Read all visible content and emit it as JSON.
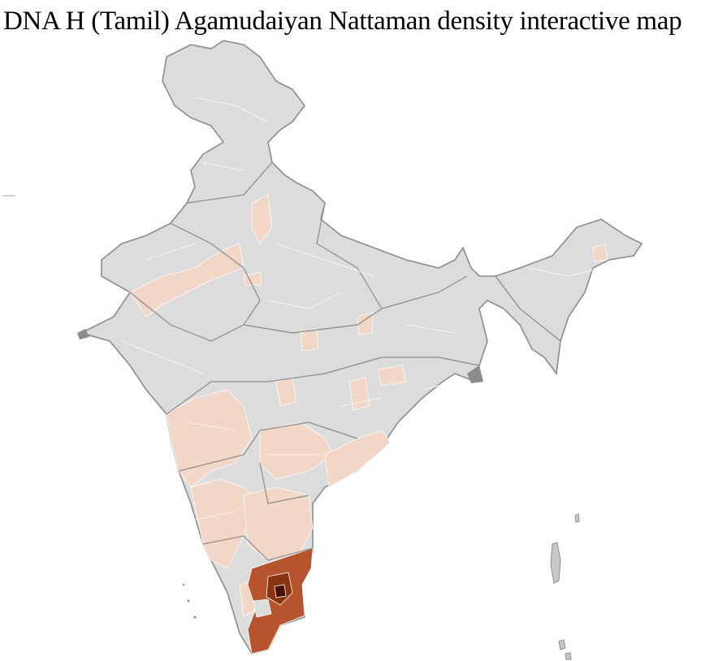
{
  "title": "DNA H (Tamil) Agamudaiyan Nattaman density interactive map",
  "map": {
    "region": "India (districts)",
    "legend_shown": false,
    "colors": {
      "no_data": "#dcdcdc",
      "border": "#8c8c8c",
      "low": "#f2d6c6",
      "medium": "#b5542d",
      "high": "#7a2a08",
      "peak": "#4a1200"
    },
    "highest_density_area": "Tamil Nadu"
  }
}
